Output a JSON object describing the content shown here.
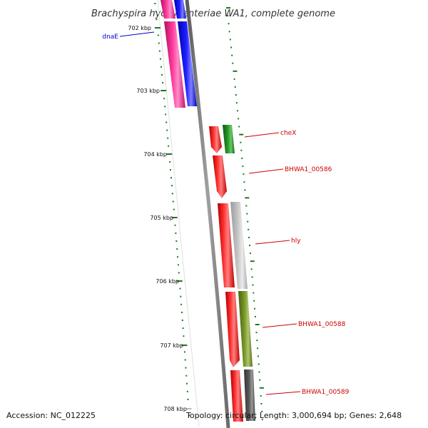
{
  "title": "Brachyspira hyodysenteriae WA1, complete genome",
  "footer": {
    "accession": "Accession: NC_012225",
    "topology": "Topology: circular; Length: 3,000,694 bp; Genes: 2,648"
  },
  "ticks": [
    "702 kbp",
    "703 kbp",
    "704 kbp",
    "705 kbp",
    "706 kbp",
    "707 kbp",
    "708 kbp"
  ],
  "gene_labels": [
    {
      "text": "dnaE",
      "color": "#0000cc"
    },
    {
      "text": "cheX",
      "color": "#cc0000"
    },
    {
      "text": "BHWA1_00586",
      "color": "#cc0000"
    },
    {
      "text": "hly",
      "color": "#cc0000"
    },
    {
      "text": "BHWA1_00588",
      "color": "#cc0000"
    },
    {
      "text": "BHWA1_00589",
      "color": "#cc0000"
    }
  ],
  "colors": {
    "backbone": "#808080",
    "tick_mark": "#1a7a1a",
    "cds_red": "#ff0000",
    "magenta": "#ff1493",
    "blue": "#0000ff",
    "green": "#228b22",
    "olive": "#6b8e23",
    "light_grey": "#c8c8c8",
    "dark_grey": "#555555"
  }
}
